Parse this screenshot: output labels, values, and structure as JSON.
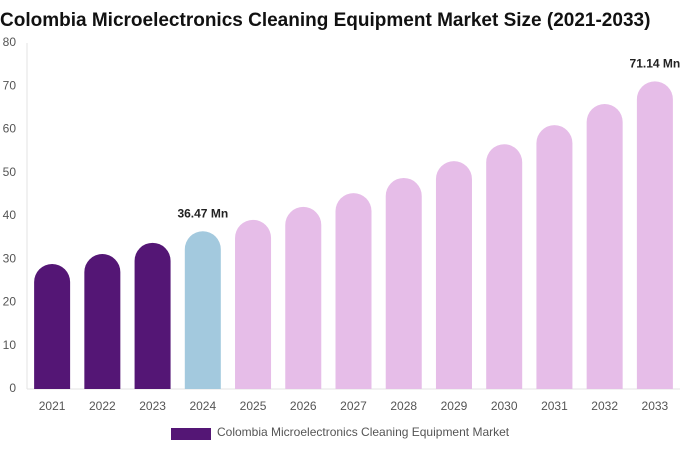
{
  "chart_data": {
    "type": "bar",
    "title": "Colombia Microelectronics Cleaning Equipment Market Size (2021-2033)",
    "categories": [
      "2021",
      "2022",
      "2023",
      "2024",
      "2025",
      "2026",
      "2027",
      "2028",
      "2029",
      "2030",
      "2031",
      "2032",
      "2033"
    ],
    "series": [
      {
        "name": "Colombia Microelectronics Cleaning Equipment Market",
        "color": "#541675",
        "colors": [
          "#541675",
          "#541675",
          "#541675",
          "#a3c9de",
          "#e6bde8",
          "#e6bde8",
          "#e6bde8",
          "#e6bde8",
          "#e6bde8",
          "#e6bde8",
          "#e6bde8",
          "#e6bde8",
          "#e6bde8"
        ],
        "values": [
          28.9,
          31.2,
          33.8,
          36.47,
          39.1,
          42.1,
          45.3,
          48.8,
          52.7,
          56.6,
          61.0,
          65.9,
          71.14
        ],
        "value_labels": [
          null,
          null,
          null,
          "36.47 Mn",
          null,
          null,
          null,
          null,
          null,
          null,
          null,
          null,
          "71.14 Mn"
        ]
      }
    ],
    "ylim": [
      0,
      80
    ],
    "yticks": [
      0,
      10,
      20,
      30,
      40,
      50,
      60,
      70,
      80
    ],
    "grid": false
  }
}
